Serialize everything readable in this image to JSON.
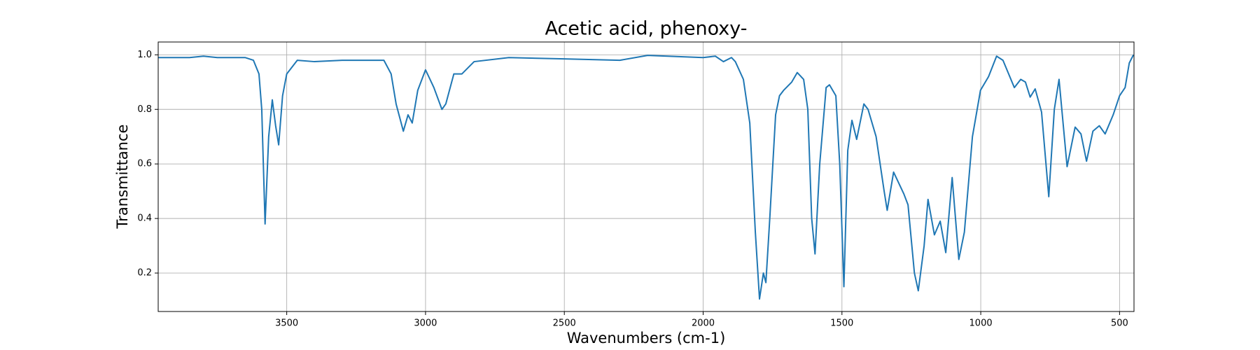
{
  "chart_data": {
    "type": "line",
    "title": "Acetic acid, phenoxy-",
    "x_label": "Wavenumbers (cm-1)",
    "y_label": "Transmittance",
    "x": [
      3963,
      3900,
      3850,
      3800,
      3750,
      3700,
      3650,
      3620,
      3600,
      3590,
      3578,
      3565,
      3552,
      3540,
      3529,
      3515,
      3500,
      3462,
      3400,
      3300,
      3150,
      3124,
      3106,
      3080,
      3063,
      3048,
      3028,
      3000,
      2970,
      2941,
      2927,
      2898,
      2869,
      2825,
      2700,
      2500,
      2300,
      2200,
      2000,
      1956,
      1927,
      1898,
      1884,
      1855,
      1832,
      1812,
      1797,
      1783,
      1774,
      1760,
      1739,
      1725,
      1710,
      1681,
      1661,
      1638,
      1623,
      1609,
      1597,
      1580,
      1557,
      1545,
      1522,
      1508,
      1493,
      1479,
      1464,
      1447,
      1421,
      1406,
      1377,
      1348,
      1337,
      1314,
      1277,
      1262,
      1239,
      1225,
      1204,
      1190,
      1167,
      1146,
      1126,
      1103,
      1079,
      1059,
      1030,
      1001,
      972,
      943,
      920,
      879,
      856,
      839,
      822,
      804,
      781,
      755,
      735,
      718,
      689,
      660,
      639,
      619,
      596,
      573,
      552,
      523,
      500,
      480,
      465,
      450
    ],
    "y": [
      0.99,
      0.99,
      0.99,
      0.995,
      0.99,
      0.99,
      0.99,
      0.98,
      0.93,
      0.8,
      0.38,
      0.7,
      0.835,
      0.74,
      0.67,
      0.85,
      0.93,
      0.98,
      0.975,
      0.98,
      0.98,
      0.93,
      0.82,
      0.72,
      0.78,
      0.75,
      0.87,
      0.945,
      0.88,
      0.8,
      0.82,
      0.93,
      0.93,
      0.975,
      0.99,
      0.985,
      0.98,
      0.998,
      0.99,
      0.995,
      0.975,
      0.99,
      0.975,
      0.91,
      0.75,
      0.35,
      0.105,
      0.2,
      0.165,
      0.4,
      0.78,
      0.85,
      0.87,
      0.9,
      0.935,
      0.91,
      0.8,
      0.4,
      0.27,
      0.6,
      0.88,
      0.89,
      0.85,
      0.6,
      0.15,
      0.65,
      0.76,
      0.69,
      0.82,
      0.8,
      0.7,
      0.5,
      0.43,
      0.57,
      0.49,
      0.45,
      0.2,
      0.135,
      0.3,
      0.47,
      0.34,
      0.39,
      0.275,
      0.55,
      0.25,
      0.35,
      0.7,
      0.87,
      0.92,
      0.995,
      0.98,
      0.88,
      0.91,
      0.9,
      0.845,
      0.875,
      0.79,
      0.48,
      0.8,
      0.91,
      0.59,
      0.735,
      0.71,
      0.61,
      0.72,
      0.74,
      0.71,
      0.78,
      0.85,
      0.88,
      0.97,
      1.0
    ],
    "color": "#1f77b4",
    "xlim": [
      3963,
      448
    ],
    "ylim": [
      0.059,
      1.047
    ],
    "xticks": [
      3500,
      3000,
      2500,
      2000,
      1500,
      1000,
      500
    ],
    "yticks": [
      0.2,
      0.4,
      0.6,
      0.8,
      {
        "value": 1,
        "label": "1.0"
      }
    ],
    "grid": true
  }
}
